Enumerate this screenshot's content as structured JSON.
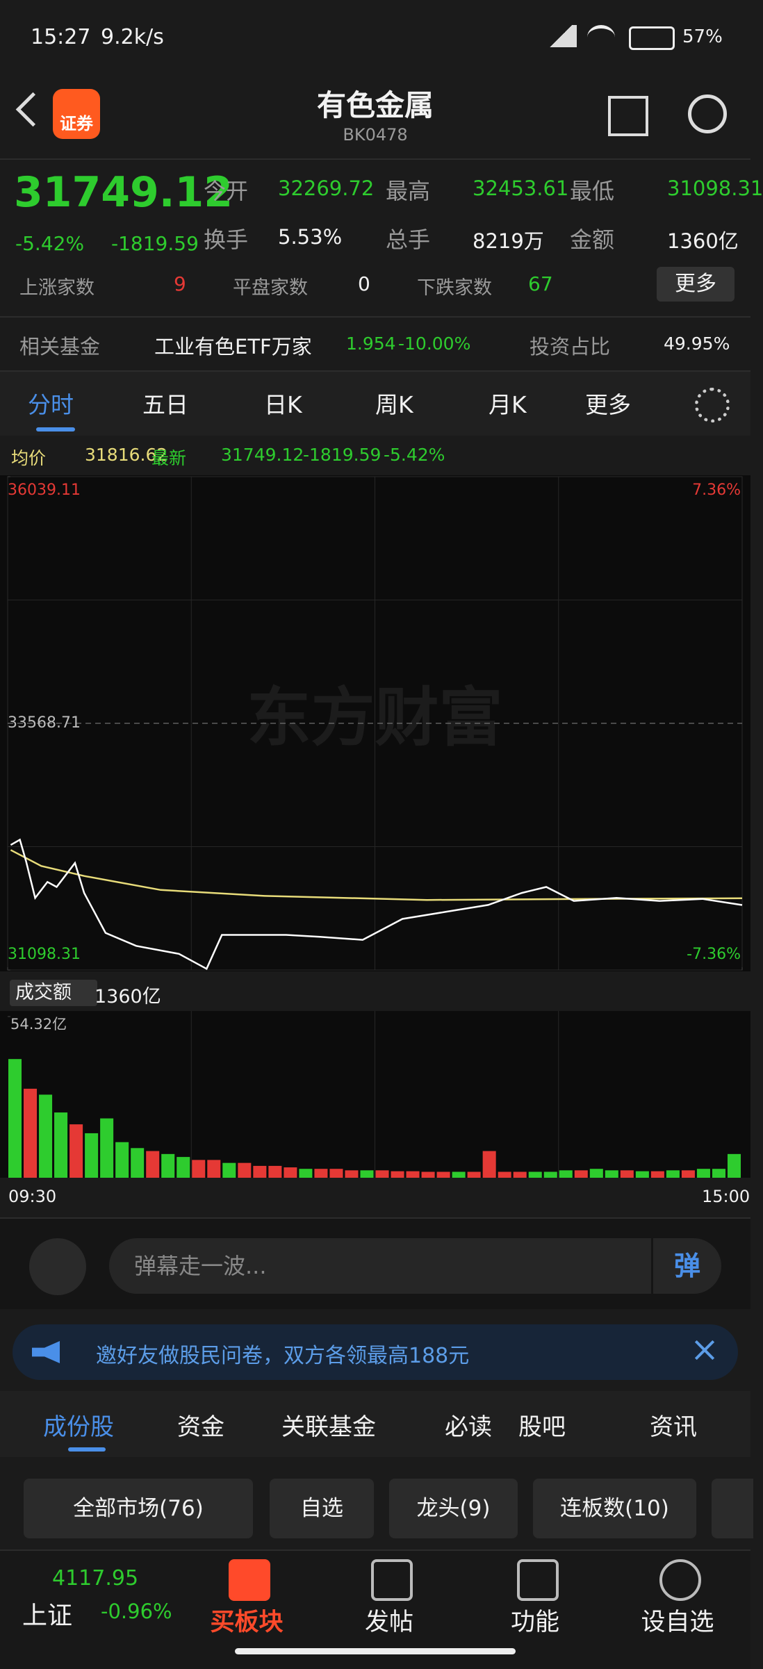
{
  "status_bar": {
    "time": "15:27",
    "speed": "9.2k/s",
    "battery": "57%"
  },
  "header": {
    "badge": "证券",
    "title": "有色金属",
    "code": "BK0478"
  },
  "quote": {
    "price": "31749.12",
    "change_pct": "-5.42%",
    "change": "-1819.59"
  },
  "stats": [
    {
      "label": "今开",
      "value": "32269.72"
    },
    {
      "label": "最高",
      "value": "32453.61"
    },
    {
      "label": "最低",
      "value": "31098.31"
    },
    {
      "label": "换手",
      "value": "5.53%"
    },
    {
      "label": "总手",
      "value": "8219万"
    },
    {
      "label": "金额",
      "value": "1360亿"
    }
  ],
  "breadth": [
    {
      "label": "上涨家数",
      "value": "9"
    },
    {
      "label": "平盘家数",
      "value": "0"
    },
    {
      "label": "下跌家数",
      "value": "67"
    }
  ],
  "more_button": "更多",
  "fund": {
    "label": "相关基金",
    "name": "工业有色ETF万家",
    "price": "1.954",
    "change": "-10.00%",
    "share_label": "投资占比",
    "share": "49.95%"
  },
  "period_tabs": [
    "分时",
    "五日",
    "日K",
    "周K",
    "月K",
    "更多"
  ],
  "chart_data": {
    "type": "line",
    "info": {
      "avg_label": "均价",
      "avg_value": "31816.62",
      "latest_label": "最新",
      "latest_value": "31749.12",
      "change": "-1819.59",
      "change_pct": "-5.42%"
    },
    "watermark": "东方财富",
    "xlim": [
      0,
      240
    ],
    "xticks": [
      {
        "value": 0,
        "label": "09:30"
      },
      {
        "value": 240,
        "label": "15:00"
      }
    ],
    "ylim": [
      31098.31,
      36039.11
    ],
    "yticks": [
      31098.31,
      33568.71,
      36039.11
    ],
    "right_labels": [
      "-7.36%",
      "7.36%"
    ],
    "series": [
      {
        "name": "均价",
        "color": "#e8dc7a",
        "x": [
          1,
          11,
          25,
          50,
          84,
          137,
          189,
          240
        ],
        "values": [
          32300,
          32140,
          32040,
          31900,
          31840,
          31800,
          31810,
          31816.62
        ]
      },
      {
        "name": "最新",
        "color": "#ffffff",
        "x": [
          1,
          4,
          6,
          9,
          13,
          16,
          22,
          25,
          32,
          42,
          56,
          65,
          70,
          81,
          91,
          102,
          116,
          129,
          143,
          157,
          168,
          176,
          185,
          199,
          213,
          227,
          240
        ],
        "values": [
          32350,
          32403,
          32190,
          31820,
          31980,
          31930,
          32170,
          31870,
          31470,
          31340,
          31260,
          31110,
          31450,
          31450,
          31450,
          31430,
          31400,
          31610,
          31680,
          31750,
          31870,
          31930,
          31790,
          31820,
          31790,
          31810,
          31749.12
        ]
      }
    ]
  },
  "volume": {
    "label": "成交额",
    "total": "1360亿",
    "ylim": [
      0,
      54.32
    ],
    "yticks": [
      {
        "value": 54.32,
        "label": "54.32亿"
      }
    ],
    "values": [
      40,
      30,
      28,
      22,
      18,
      15,
      20,
      12,
      10,
      9,
      8,
      7,
      6,
      6,
      5,
      5,
      4,
      4,
      3.5,
      3,
      3,
      3,
      2.5,
      2.5,
      2.5,
      2.2,
      2.2,
      2,
      2,
      2,
      2,
      9,
      2,
      2,
      2,
      2,
      2.5,
      2.5,
      3,
      2.5,
      2.5,
      2.2,
      2.2,
      2.5,
      2.5,
      3,
      3,
      8
    ],
    "colors": [
      "#2ecc2e",
      "#e53935",
      "#2ecc2e",
      "#2ecc2e",
      "#e53935",
      "#2ecc2e",
      "#2ecc2e",
      "#2ecc2e",
      "#2ecc2e",
      "#e53935",
      "#2ecc2e",
      "#2ecc2e",
      "#e53935",
      "#e53935",
      "#2ecc2e",
      "#e53935",
      "#e53935",
      "#e53935",
      "#e53935",
      "#2ecc2e",
      "#e53935",
      "#e53935",
      "#e53935",
      "#2ecc2e",
      "#e53935",
      "#e53935",
      "#e53935",
      "#e53935",
      "#e53935",
      "#2ecc2e",
      "#e53935",
      "#e53935",
      "#e53935",
      "#e53935",
      "#2ecc2e",
      "#2ecc2e",
      "#2ecc2e",
      "#e53935",
      "#2ecc2e",
      "#2ecc2e",
      "#e53935",
      "#2ecc2e",
      "#e53935",
      "#2ecc2e",
      "#e53935",
      "#2ecc2e",
      "#2ecc2e",
      "#2ecc2e"
    ]
  },
  "comment": {
    "placeholder": "弹幕走一波...",
    "button": "弹"
  },
  "banner": "邀好友做股民问卷，双方各领最高188元",
  "content_tabs": [
    "成份股",
    "资金",
    "关联基金",
    "必读",
    "股吧",
    "资讯"
  ],
  "filters": [
    "全部市场(76)",
    "自选",
    "龙头(9)",
    "连板数(10)"
  ],
  "bottom_nav": {
    "index_name": "上证",
    "index_value": "4117.95",
    "index_change": "-0.96%",
    "items": [
      "买板块",
      "发帖",
      "功能",
      "设自选"
    ]
  }
}
